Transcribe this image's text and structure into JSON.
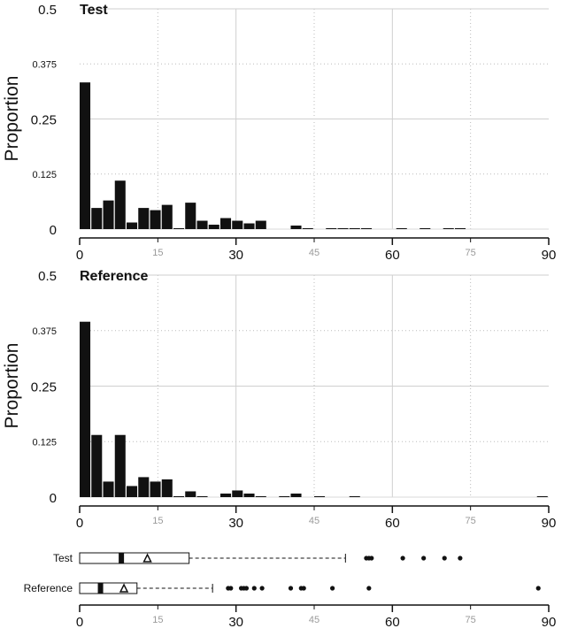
{
  "chart_data": [
    {
      "type": "bar",
      "panel": "histogram",
      "title": "Test",
      "ylabel": "Proportion",
      "xlim": [
        0,
        90
      ],
      "ylim": [
        0,
        0.5
      ],
      "y_ticks": [
        "0",
        "0.125",
        "0.25",
        "0.375",
        "0.5"
      ],
      "bin_width": 2.25,
      "bins": [
        {
          "x": 0,
          "value": 0.333
        },
        {
          "x": 2.25,
          "value": 0.048
        },
        {
          "x": 4.5,
          "value": 0.065
        },
        {
          "x": 6.75,
          "value": 0.11
        },
        {
          "x": 9,
          "value": 0.015
        },
        {
          "x": 11.25,
          "value": 0.048
        },
        {
          "x": 13.5,
          "value": 0.043
        },
        {
          "x": 15.75,
          "value": 0.055
        },
        {
          "x": 18,
          "value": 0.002
        },
        {
          "x": 20.25,
          "value": 0.06
        },
        {
          "x": 22.5,
          "value": 0.019
        },
        {
          "x": 24.75,
          "value": 0.01
        },
        {
          "x": 27,
          "value": 0.025
        },
        {
          "x": 29.25,
          "value": 0.019
        },
        {
          "x": 31.5,
          "value": 0.013
        },
        {
          "x": 33.75,
          "value": 0.019
        },
        {
          "x": 40.5,
          "value": 0.008
        },
        {
          "x": 42.75,
          "value": 0.002
        },
        {
          "x": 47.25,
          "value": 0.002
        },
        {
          "x": 49.5,
          "value": 0.002
        },
        {
          "x": 51.75,
          "value": 0.002
        },
        {
          "x": 54,
          "value": 0.002
        },
        {
          "x": 60.75,
          "value": 0.002
        },
        {
          "x": 65.25,
          "value": 0.002
        },
        {
          "x": 69.75,
          "value": 0.002
        },
        {
          "x": 72,
          "value": 0.002
        }
      ]
    },
    {
      "type": "bar",
      "panel": "histogram",
      "title": "Reference",
      "ylabel": "Proportion",
      "xlim": [
        0,
        90
      ],
      "ylim": [
        0,
        0.5
      ],
      "y_ticks": [
        "0",
        "0.125",
        "0.25",
        "0.375",
        "0.5"
      ],
      "bin_width": 2.25,
      "bins": [
        {
          "x": 0,
          "value": 0.395
        },
        {
          "x": 2.25,
          "value": 0.14
        },
        {
          "x": 4.5,
          "value": 0.035
        },
        {
          "x": 6.75,
          "value": 0.14
        },
        {
          "x": 9,
          "value": 0.025
        },
        {
          "x": 11.25,
          "value": 0.045
        },
        {
          "x": 13.5,
          "value": 0.035
        },
        {
          "x": 15.75,
          "value": 0.04
        },
        {
          "x": 18,
          "value": 0.002
        },
        {
          "x": 20.25,
          "value": 0.013
        },
        {
          "x": 22.5,
          "value": 0.002
        },
        {
          "x": 27,
          "value": 0.008
        },
        {
          "x": 29.25,
          "value": 0.015
        },
        {
          "x": 31.5,
          "value": 0.008
        },
        {
          "x": 33.75,
          "value": 0.002
        },
        {
          "x": 38.25,
          "value": 0.002
        },
        {
          "x": 40.5,
          "value": 0.008
        },
        {
          "x": 45,
          "value": 0.002
        },
        {
          "x": 51.75,
          "value": 0.002
        },
        {
          "x": 87.75,
          "value": 0.002
        }
      ]
    },
    {
      "type": "boxplot",
      "panel": "boxplots",
      "xlim": [
        0,
        90
      ],
      "series": [
        {
          "name": "Test",
          "q1": 0,
          "median": 8,
          "q3": 21,
          "mean": 13,
          "whisker_low": 0,
          "whisker_high": 51,
          "outliers": [
            55,
            55.5,
            56,
            62,
            66,
            70,
            73
          ]
        },
        {
          "name": "Reference",
          "q1": 0,
          "median": 4,
          "q3": 11,
          "mean": 8.5,
          "whisker_low": 0,
          "whisker_high": 25.5,
          "outliers": [
            28.5,
            29,
            31,
            31.5,
            32,
            33.5,
            35,
            40.5,
            42.5,
            43,
            48.5,
            55.5,
            88
          ]
        }
      ]
    }
  ],
  "x_axis": {
    "major_ticks": [
      "0",
      "30",
      "60",
      "90"
    ],
    "minor_ticks": [
      "15",
      "45",
      "75"
    ]
  }
}
